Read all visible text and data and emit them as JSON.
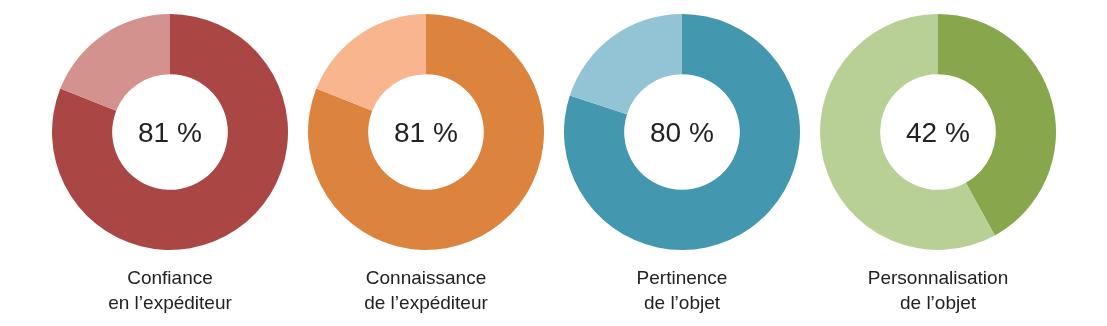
{
  "chart_data": [
    {
      "type": "donut",
      "title": "Confiance\nen l’expéditeur",
      "categories": [
        null,
        null
      ],
      "values": [
        81,
        19
      ],
      "colors": [
        "#aa4644",
        "#d4928f"
      ],
      "annotations": [
        "81 %"
      ],
      "legend": false
    },
    {
      "type": "donut",
      "title": "Connaissance\nde l’expéditeur",
      "categories": [
        null,
        null
      ],
      "values": [
        81,
        19
      ],
      "colors": [
        "#dc843e",
        "#f9b58e"
      ],
      "annotations": [
        "81 %"
      ],
      "legend": false
    },
    {
      "type": "donut",
      "title": "Pertinence\nde l’objet",
      "categories": [
        null,
        null
      ],
      "values": [
        80,
        20
      ],
      "colors": [
        "#4398b0",
        "#93c4d5"
      ],
      "annotations": [
        "80 %"
      ],
      "legend": false
    },
    {
      "type": "donut",
      "title": "Personnalisation\nde l’objet",
      "categories": [
        null,
        null
      ],
      "values": [
        42,
        58
      ],
      "colors": [
        "#88a64c",
        "#b8cf95"
      ],
      "annotations": [
        "42 %"
      ],
      "legend": false
    }
  ]
}
